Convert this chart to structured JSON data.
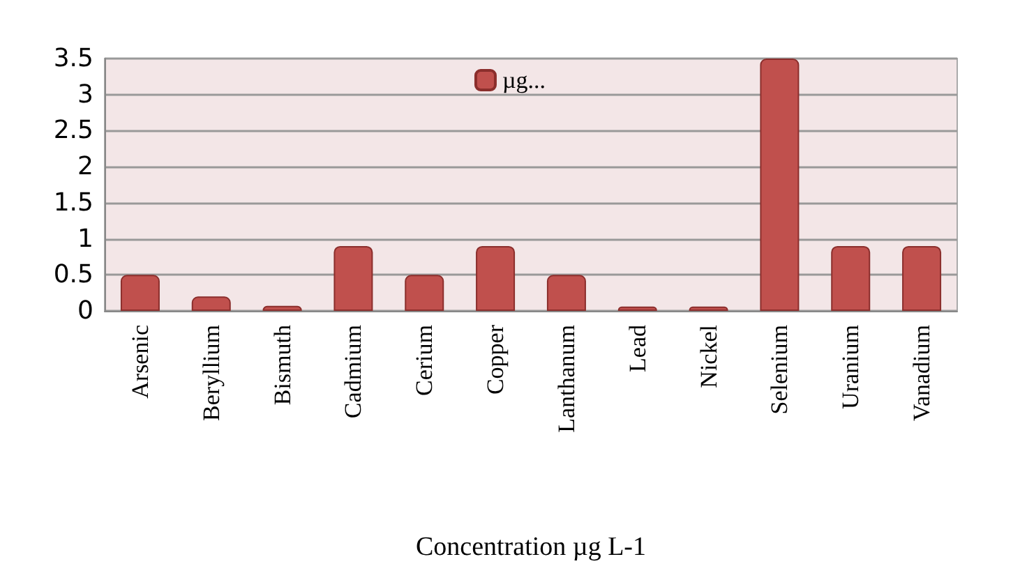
{
  "chart_data": {
    "type": "bar",
    "xlabel": "Concentration µg L-1",
    "categories": [
      "Arsenic",
      "Beryllium",
      "Bismuth",
      "Cadmium",
      "Cerium",
      "Copper",
      "Lanthanum",
      "Lead",
      "Nickel",
      "Selenium",
      "Uranium",
      "Vanadium"
    ],
    "series": [
      {
        "name": "µg...",
        "color": "#c0504d",
        "values": [
          0.5,
          0.2,
          0.07,
          0.9,
          0.5,
          0.9,
          0.5,
          0.06,
          0.06,
          3.5,
          0.9,
          0.9
        ]
      }
    ],
    "ylim": [
      0,
      3.5
    ],
    "yticks": [
      0,
      0.5,
      1,
      1.5,
      2,
      2.5,
      3,
      3.5
    ],
    "grid": "y",
    "legend": "top"
  }
}
